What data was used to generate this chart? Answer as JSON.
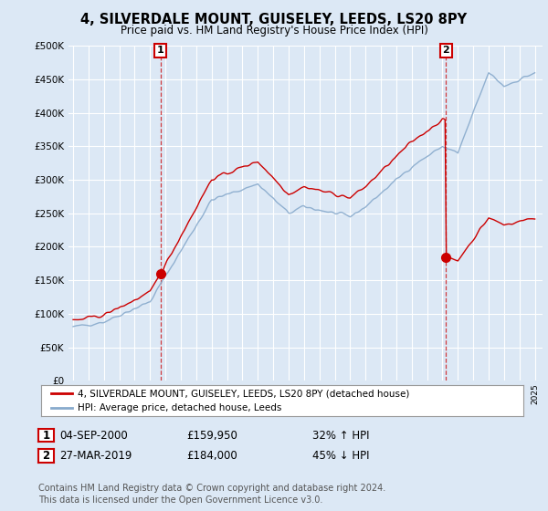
{
  "title": "4, SILVERDALE MOUNT, GUISELEY, LEEDS, LS20 8PY",
  "subtitle": "Price paid vs. HM Land Registry's House Price Index (HPI)",
  "ylim": [
    0,
    500000
  ],
  "yticks": [
    0,
    50000,
    100000,
    150000,
    200000,
    250000,
    300000,
    350000,
    400000,
    450000,
    500000
  ],
  "ytick_labels": [
    "£0",
    "£50K",
    "£100K",
    "£150K",
    "£200K",
    "£250K",
    "£300K",
    "£350K",
    "£400K",
    "£450K",
    "£500K"
  ],
  "background_color": "#dce8f5",
  "plot_bg_color": "#dce8f5",
  "grid_color": "#ffffff",
  "sale1_year": 2000.67,
  "sale1_price": 159950,
  "sale2_year": 2019.22,
  "sale2_price": 184000,
  "sale1_date_str": "04-SEP-2000",
  "sale1_hpi_str": "32% ↑ HPI",
  "sale2_date_str": "27-MAR-2019",
  "sale2_hpi_str": "45% ↓ HPI",
  "red_color": "#cc0000",
  "blue_color": "#88aacc",
  "legend_label_red": "4, SILVERDALE MOUNT, GUISELEY, LEEDS, LS20 8PY (detached house)",
  "legend_label_blue": "HPI: Average price, detached house, Leeds",
  "footer_text": "Contains HM Land Registry data © Crown copyright and database right 2024.\nThis data is licensed under the Open Government Licence v3.0.",
  "xmin": 1994.7,
  "xmax": 2025.5
}
